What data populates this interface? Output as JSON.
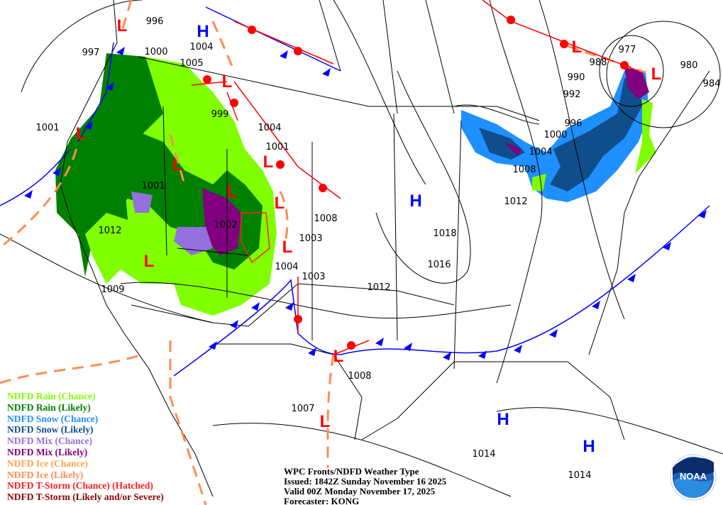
{
  "title_block": {
    "title": "WPC Fronts/NDFD Weather Type",
    "issued": "Issued: 1842Z Sunday November 16 2025",
    "valid": "Valid 00Z Monday November 17, 2025",
    "forecaster": "Forecaster: KONG"
  },
  "legend": [
    {
      "label": "NDFD Rain (Chance)",
      "color": "#80ff00"
    },
    {
      "label": "NDFD Rain (Likely)",
      "color": "#008000"
    },
    {
      "label": "NDFD Snow (Chance)",
      "color": "#1e90ff"
    },
    {
      "label": "NDFD Snow (Likely)",
      "color": "#104e8b"
    },
    {
      "label": "NDFD Mix (Chance)",
      "color": "#9370db"
    },
    {
      "label": "NDFD Mix (Likely)",
      "color": "#800080"
    },
    {
      "label": "NDFD Ice (Chance)",
      "color": "#ffa54f"
    },
    {
      "label": "NDFD Ice (Likely)",
      "color": "#ff8c4f"
    },
    {
      "label": "NDFD T-Storm (Chance) (Hatched)",
      "color": "#ff2020"
    },
    {
      "label": "NDFD T-Storm (Likely and/or Severe)",
      "color": "#8b0000"
    }
  ],
  "isobar_labels": [
    "996",
    "997",
    "1000",
    "1004",
    "1005",
    "999",
    "1001",
    "1004",
    "1001",
    "1001",
    "1012",
    "1002",
    "1008",
    "1003",
    "1004",
    "1003",
    "1009",
    "1012",
    "1018",
    "1016",
    "1012",
    "1008",
    "1004",
    "1000",
    "996",
    "992",
    "990",
    "988",
    "977",
    "980",
    "984",
    "1008",
    "1007",
    "1014",
    "1014"
  ],
  "low_symbol": "L",
  "high_symbol": "H",
  "low_count": 13,
  "high_count": 4,
  "colors": {
    "low": "#ff0000",
    "high": "#0000ff",
    "cold_front": "#0000ff",
    "warm_front": "#ff0000",
    "trough": "#ff8c4f"
  },
  "logo": {
    "text": "NOAA"
  }
}
